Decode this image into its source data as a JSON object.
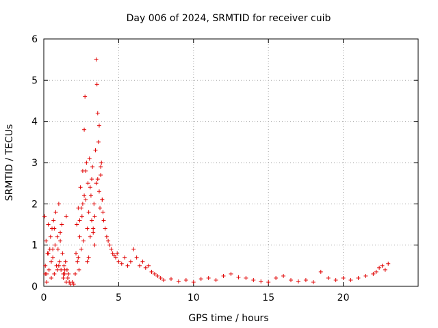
{
  "chart_data": {
    "type": "scatter",
    "title": "Day 006 of 2024, SRMTID for receiver cuib",
    "xlabel": "GPS time / hours",
    "ylabel": "SRMTID / TECUs",
    "xlim": [
      0,
      25
    ],
    "ylim": [
      0,
      6
    ],
    "xticks": [
      "0",
      "5",
      "10",
      "15",
      "20"
    ],
    "yticks": [
      "0",
      "1",
      "2",
      "3",
      "4",
      "5",
      "6"
    ],
    "grid": true,
    "marker": "+",
    "color": "#e00000",
    "series": [
      {
        "name": "SRMTID",
        "x": [
          0.05,
          0.1,
          0.15,
          0.2,
          0.25,
          0.3,
          0.35,
          0.4,
          0.45,
          0.5,
          0.55,
          0.6,
          0.65,
          0.7,
          0.75,
          0.8,
          0.85,
          0.9,
          0.95,
          1.0,
          1.05,
          1.1,
          1.15,
          1.2,
          1.25,
          1.3,
          1.35,
          1.4,
          1.45,
          1.5,
          1.55,
          1.6,
          1.65,
          1.7,
          1.8,
          1.9,
          2.0,
          2.1,
          2.15,
          2.2,
          2.25,
          2.3,
          2.35,
          2.4,
          2.45,
          2.5,
          2.55,
          2.6,
          2.65,
          2.7,
          2.75,
          2.8,
          2.85,
          2.9,
          2.95,
          3.0,
          3.05,
          3.1,
          3.15,
          3.2,
          3.25,
          3.3,
          3.35,
          3.4,
          3.45,
          3.5,
          3.55,
          3.6,
          3.65,
          3.7,
          3.75,
          3.8,
          3.85,
          3.9,
          3.95,
          4.0,
          4.1,
          4.2,
          4.3,
          4.4,
          4.5,
          4.6,
          4.7,
          4.8,
          4.9,
          5.0,
          5.2,
          5.4,
          5.6,
          5.8,
          6.0,
          6.2,
          6.4,
          6.6,
          6.8,
          7.0,
          7.2,
          7.4,
          7.6,
          7.8,
          8.0,
          8.5,
          9.0,
          9.5,
          10.0,
          10.5,
          11.0,
          11.5,
          12.0,
          12.5,
          13.0,
          13.5,
          14.0,
          14.5,
          15.0,
          15.5,
          16.0,
          16.5,
          17.0,
          17.5,
          18.0,
          18.5,
          19.0,
          19.5,
          20.0,
          20.5,
          21.0,
          21.5,
          22.0,
          22.2,
          22.4,
          22.6,
          22.8,
          23.0,
          0.1,
          0.3,
          0.5,
          0.7,
          0.9,
          1.1,
          1.3,
          1.5,
          2.3,
          2.5,
          2.7,
          2.9,
          3.1,
          3.3,
          3.5,
          3.7,
          3.9,
          0.2,
          0.6,
          1.0,
          1.4,
          2.4,
          2.6,
          2.8,
          3.0,
          3.2,
          3.4,
          3.6,
          3.8
        ],
        "y": [
          1.7,
          0.5,
          1.1,
          0.3,
          0.8,
          1.5,
          0.4,
          0.9,
          1.2,
          0.6,
          1.4,
          0.7,
          1.6,
          0.3,
          1.0,
          1.8,
          0.5,
          1.2,
          0.9,
          2.0,
          0.6,
          1.3,
          0.4,
          1.5,
          0.8,
          0.2,
          0.5,
          0.3,
          0.6,
          0.1,
          0.4,
          0.2,
          0.3,
          0.1,
          0.05,
          0.1,
          0.05,
          0.3,
          0.8,
          1.5,
          0.6,
          1.9,
          0.4,
          1.2,
          2.4,
          0.9,
          1.7,
          2.8,
          1.1,
          3.8,
          4.6,
          2.1,
          3.0,
          1.4,
          2.5,
          1.8,
          3.1,
          1.2,
          2.2,
          1.6,
          2.9,
          1.3,
          2.0,
          1.7,
          3.3,
          5.5,
          4.9,
          2.6,
          3.5,
          2.3,
          1.9,
          2.7,
          3.0,
          2.1,
          1.8,
          1.6,
          1.4,
          1.2,
          1.1,
          1.0,
          0.9,
          0.8,
          0.75,
          0.7,
          0.8,
          0.6,
          0.55,
          0.7,
          0.5,
          0.6,
          0.9,
          0.7,
          0.5,
          0.6,
          0.45,
          0.5,
          0.35,
          0.3,
          0.25,
          0.2,
          0.15,
          0.18,
          0.12,
          0.15,
          0.1,
          0.18,
          0.2,
          0.15,
          0.25,
          0.3,
          0.22,
          0.2,
          0.15,
          0.12,
          0.1,
          0.2,
          0.25,
          0.15,
          0.12,
          0.15,
          0.1,
          0.35,
          0.2,
          0.15,
          0.2,
          0.15,
          0.2,
          0.25,
          0.3,
          0.35,
          0.45,
          0.5,
          0.4,
          0.55,
          0.3,
          0.8,
          0.2,
          1.4,
          0.4,
          1.1,
          0.3,
          1.7,
          0.7,
          1.9,
          2.2,
          0.6,
          2.4,
          1.4,
          2.5,
          3.9,
          2.1,
          0.1,
          0.9,
          0.5,
          0.4,
          1.6,
          2.0,
          2.8,
          0.7,
          2.6,
          1.0,
          4.2,
          2.9
        ]
      }
    ]
  }
}
